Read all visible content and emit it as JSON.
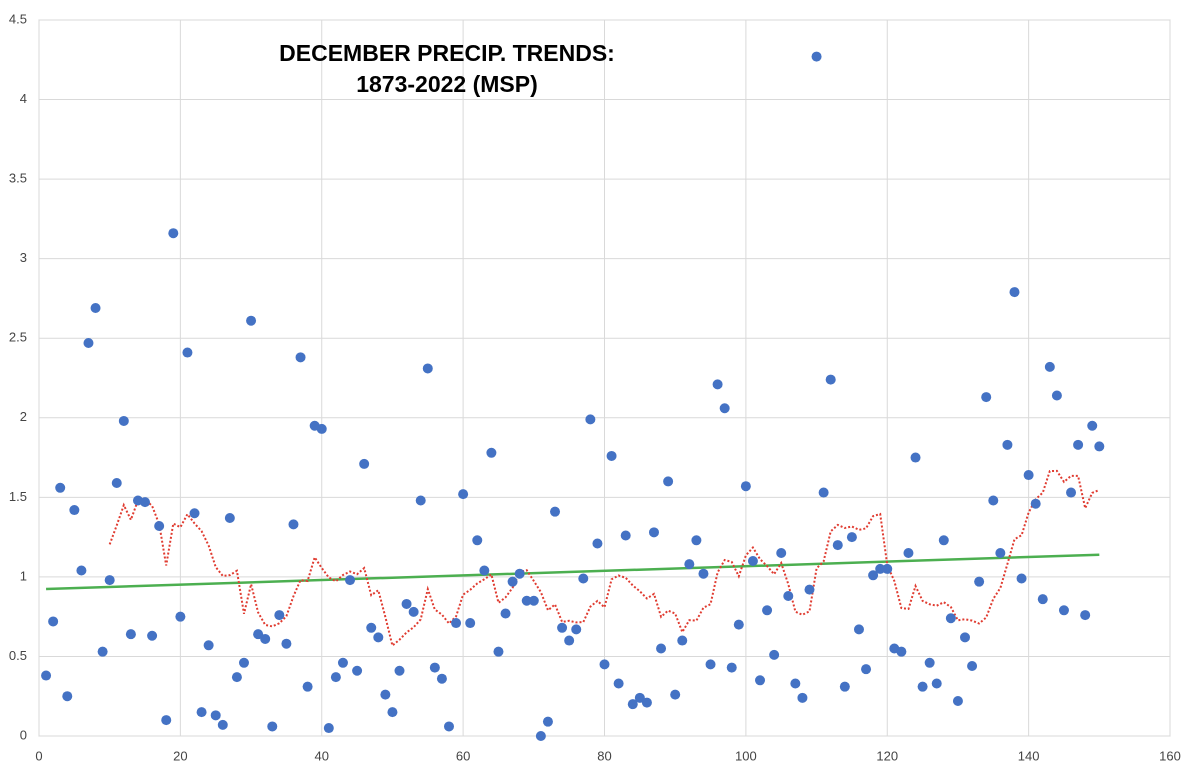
{
  "chart_data": {
    "type": "scatter",
    "title": "DECEMBER PRECIP. TRENDS:",
    "subtitle": "1873-2022 (MSP)",
    "x": [
      1,
      2,
      3,
      4,
      5,
      6,
      7,
      8,
      9,
      10,
      11,
      12,
      13,
      14,
      15,
      16,
      17,
      18,
      19,
      20,
      21,
      22,
      23,
      24,
      25,
      26,
      27,
      28,
      29,
      30,
      31,
      32,
      33,
      34,
      35,
      36,
      37,
      38,
      39,
      40,
      41,
      42,
      43,
      44,
      45,
      46,
      47,
      48,
      49,
      50,
      51,
      52,
      53,
      54,
      55,
      56,
      57,
      58,
      59,
      60,
      61,
      62,
      63,
      64,
      65,
      66,
      67,
      68,
      69,
      70,
      71,
      72,
      73,
      74,
      75,
      76,
      77,
      78,
      79,
      80,
      81,
      82,
      83,
      84,
      85,
      86,
      87,
      88,
      89,
      90,
      91,
      92,
      93,
      94,
      95,
      96,
      97,
      98,
      99,
      100,
      101,
      102,
      103,
      104,
      105,
      106,
      107,
      108,
      109,
      110,
      111,
      112,
      113,
      114,
      115,
      116,
      117,
      118,
      119,
      120,
      121,
      122,
      123,
      124,
      125,
      126,
      127,
      128,
      129,
      130,
      131,
      132,
      133,
      134,
      135,
      136,
      137,
      138,
      139,
      140,
      141,
      142,
      143,
      144,
      145,
      146,
      147,
      148,
      149,
      150
    ],
    "series": [
      {
        "color": "#4472c4",
        "values": [
          0.38,
          0.72,
          1.56,
          0.25,
          1.42,
          1.04,
          2.47,
          2.69,
          0.53,
          0.98,
          1.59,
          1.98,
          0.64,
          1.48,
          1.47,
          0.63,
          1.32,
          0.1,
          3.16,
          0.75,
          2.41,
          1.4,
          0.15,
          0.57,
          0.13,
          0.07,
          1.37,
          0.37,
          0.46,
          2.61,
          0.64,
          0.61,
          0.06,
          0.76,
          0.58,
          1.33,
          2.38,
          0.31,
          1.95,
          1.93,
          0.05,
          0.37,
          0.46,
          0.98,
          0.41,
          1.71,
          0.68,
          0.62,
          0.26,
          0.15,
          0.41,
          0.83,
          0.78,
          1.48,
          2.31,
          0.43,
          0.36,
          0.06,
          0.71,
          1.52,
          0.71,
          1.23,
          1.04,
          1.78,
          0.53,
          0.77,
          0.97,
          1.02,
          0.85,
          0.85,
          0.0,
          0.09,
          1.41,
          0.68,
          0.6,
          0.67,
          0.99,
          1.99,
          1.21,
          0.45,
          1.76,
          0.33,
          1.26,
          0.2,
          0.24,
          0.21,
          1.28,
          0.55,
          1.6,
          0.26,
          0.6,
          1.08,
          1.23,
          1.02,
          0.45,
          2.21,
          2.06,
          0.43,
          0.7,
          1.57,
          1.1,
          0.35,
          0.79,
          0.51,
          1.15,
          0.88,
          0.33,
          0.24,
          0.92,
          4.27,
          1.53,
          2.24,
          1.2,
          0.31,
          1.25,
          0.67,
          0.42,
          1.01,
          1.05,
          1.05,
          0.55,
          0.53,
          1.15,
          1.75,
          0.31,
          0.46,
          0.33,
          1.23,
          0.74,
          0.22,
          0.62,
          0.44,
          0.97,
          2.13,
          1.48,
          1.15,
          1.83,
          2.79,
          0.99,
          1.64,
          1.46,
          0.86,
          2.32,
          2.14,
          0.79,
          1.53,
          1.83,
          0.76,
          1.95,
          1.82
        ]
      }
    ],
    "trendline": {
      "type": "linear",
      "color": "#4caf50"
    },
    "moving_average": {
      "period": 10,
      "color": "#e03c31"
    },
    "xlim": [
      0,
      160
    ],
    "xticks": [
      0,
      20,
      40,
      60,
      80,
      100,
      120,
      140,
      160
    ],
    "ylim": [
      0,
      4.5
    ],
    "yticks": [
      0,
      0.5,
      1,
      1.5,
      2,
      2.5,
      3,
      3.5,
      4,
      4.5
    ],
    "grid": true
  }
}
